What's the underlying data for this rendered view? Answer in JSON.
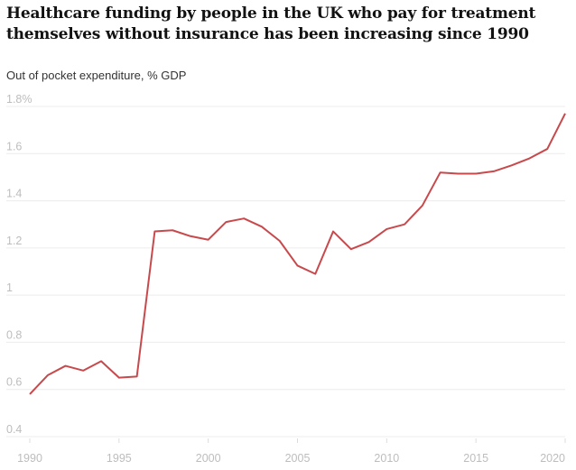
{
  "title": "Healthcare funding by people in the UK who pay for treatment themselves without insurance has been increasing since 1990",
  "subtitle": "Out of pocket expenditure, % GDP",
  "colors": {
    "line": "#c8494c",
    "grid": "#ececec",
    "tick_text": "#bdbdbd",
    "title": "#121212"
  },
  "chart_data": {
    "type": "line",
    "title": "Healthcare funding by people in the UK who pay for treatment themselves without insurance has been increasing since 1990",
    "ylabel": "Out of pocket expenditure, % GDP",
    "xlabel": "",
    "xlim": [
      1990,
      2020
    ],
    "ylim": [
      0.4,
      1.8
    ],
    "grid": true,
    "x_ticks": [
      "1990",
      "1995",
      "2000",
      "2005",
      "2010",
      "2015",
      "2020"
    ],
    "y_ticks": [
      "0.4",
      "0.6",
      "0.8",
      "1",
      "1.2",
      "1.4",
      "1.6",
      "1.8%"
    ],
    "series": [
      {
        "x": [
          1990,
          1991,
          1992,
          1993,
          1994,
          1995,
          1996,
          1997,
          1998,
          1999,
          2000,
          2001,
          2002,
          2003,
          2004,
          2005,
          2006,
          2007,
          2008,
          2009,
          2010,
          2011,
          2012,
          2013,
          2014,
          2015,
          2016,
          2017,
          2018,
          2019,
          2020
        ],
        "values": [
          0.58,
          0.66,
          0.7,
          0.68,
          0.72,
          0.65,
          0.655,
          1.27,
          1.275,
          1.25,
          1.235,
          1.31,
          1.325,
          1.29,
          1.23,
          1.125,
          1.09,
          1.27,
          1.195,
          1.225,
          1.28,
          1.3,
          1.38,
          1.52,
          1.515,
          1.515,
          1.525,
          1.55,
          1.58,
          1.62,
          1.77
        ]
      }
    ]
  }
}
